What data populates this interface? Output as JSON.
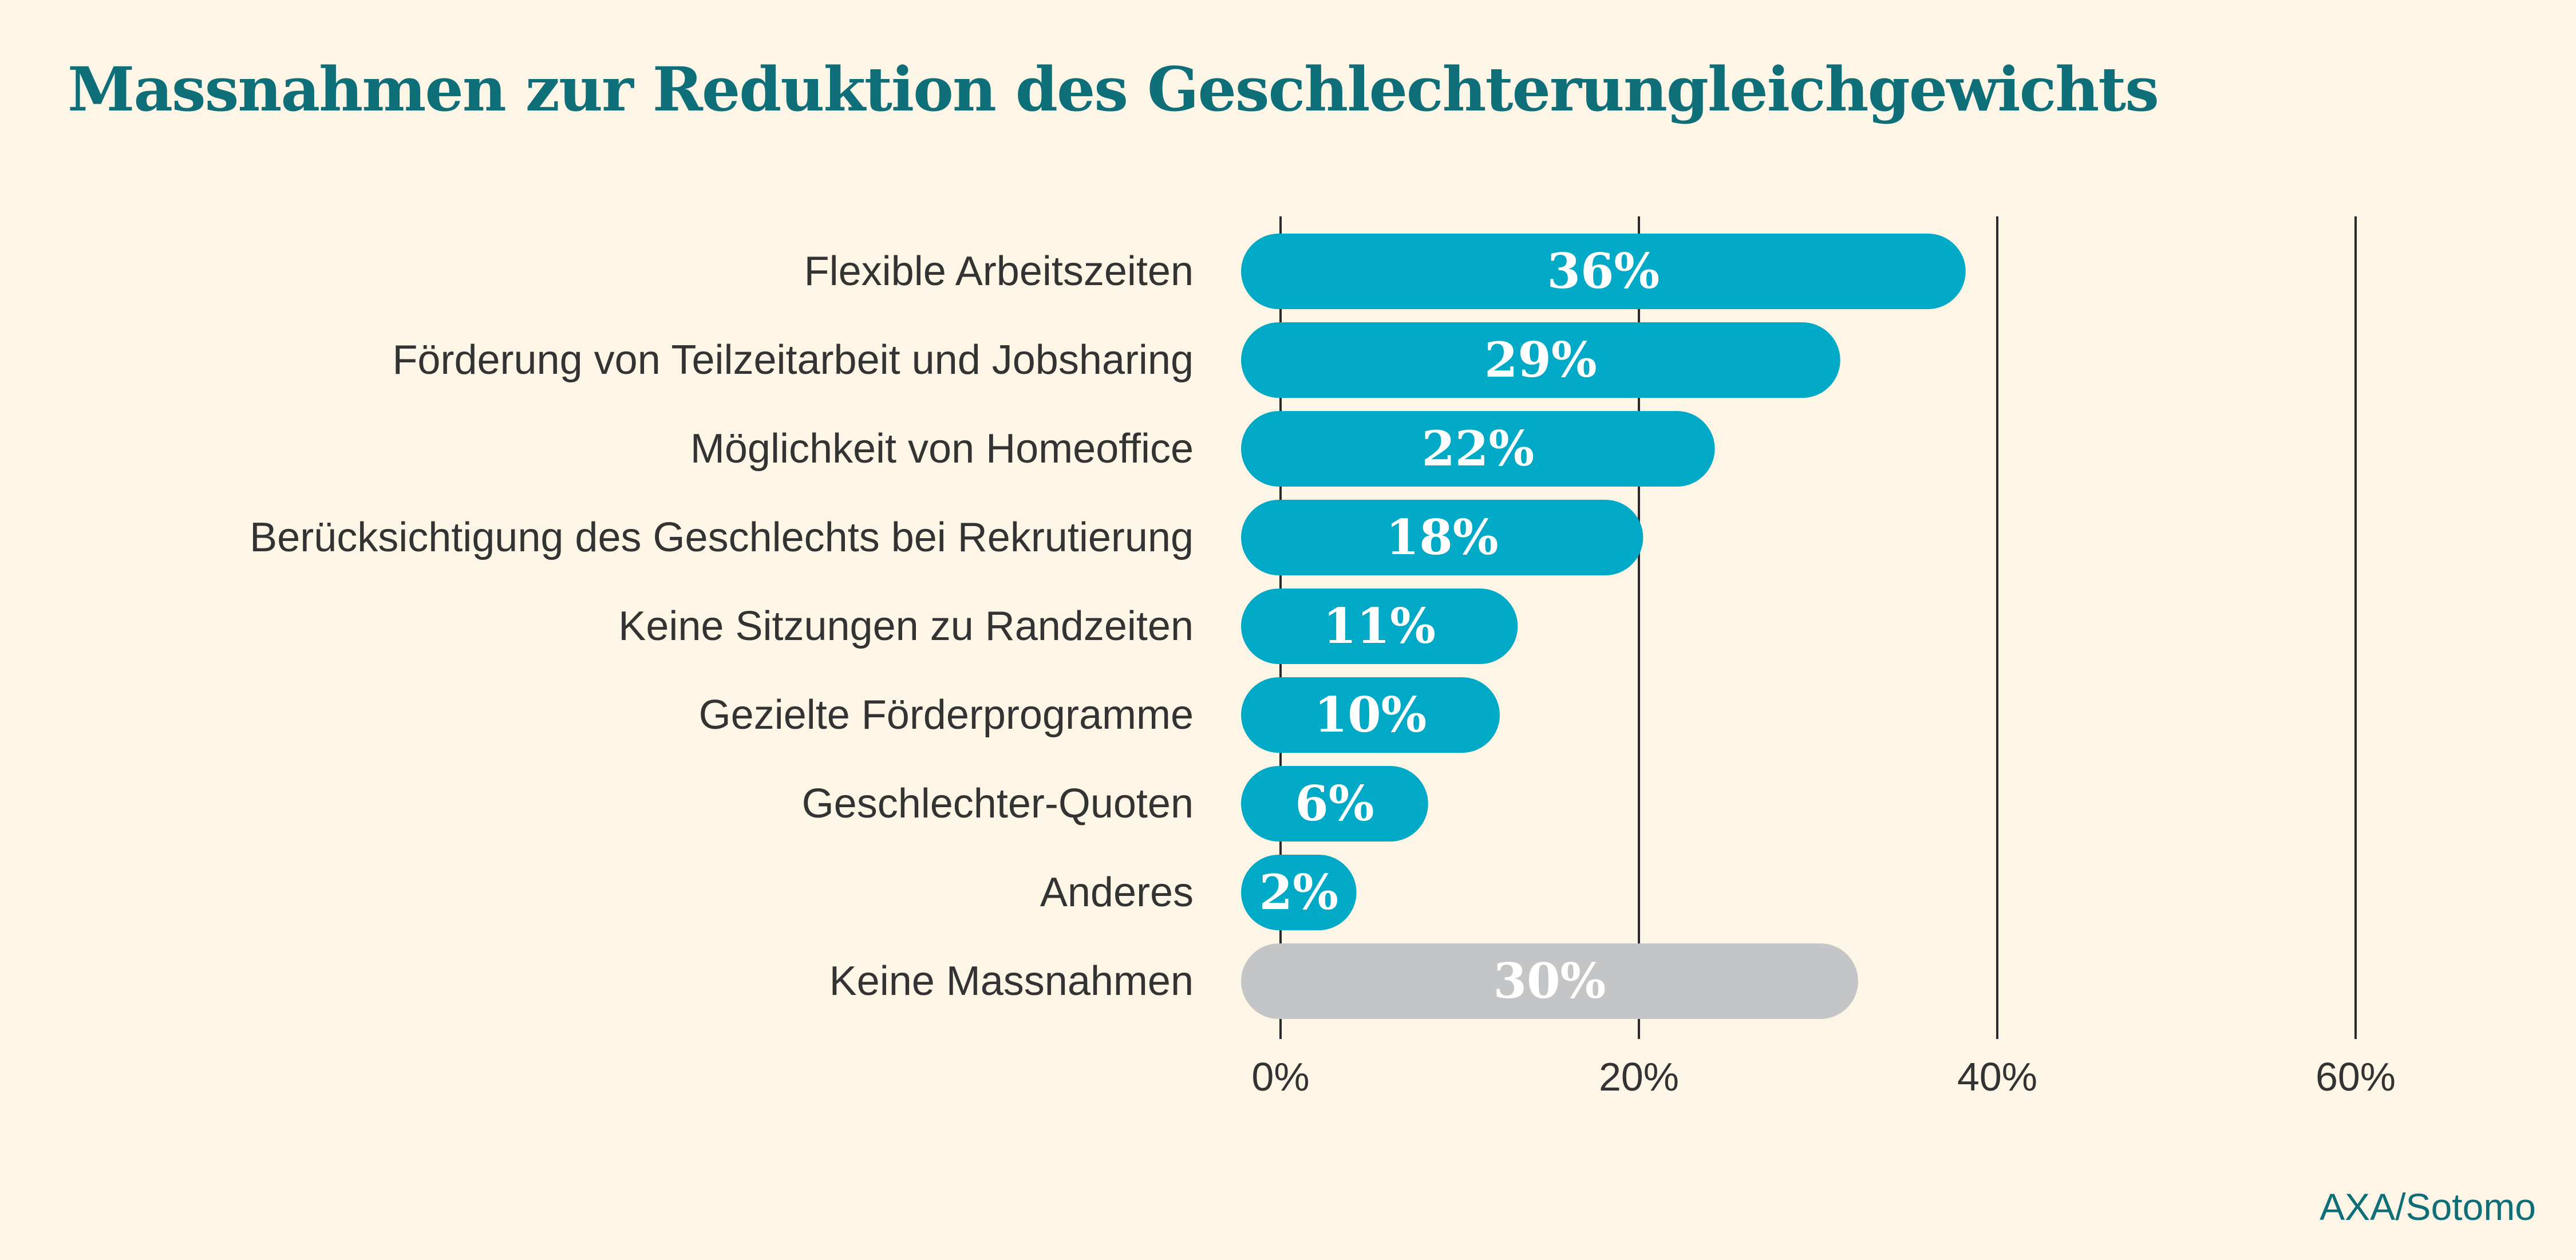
{
  "title": "Massnahmen zur Reduktion des Geschlechterungleichgewichts",
  "source": "AXA/Sotomo",
  "colors": {
    "background": "#fdf6e7",
    "title": "#0f6f78",
    "bar": "#00a9c6",
    "bar_none": "#c4c5c6",
    "bar_label": "#ffffff",
    "category_label": "#333333",
    "gridline": "#2b2b2b",
    "source": "#0f6f78"
  },
  "chart_data": {
    "type": "bar",
    "orientation": "horizontal",
    "title": "Massnahmen zur Reduktion des Geschlechterungleichgewichts",
    "xlabel": "",
    "ylabel": "",
    "xlim": [
      0,
      60
    ],
    "x_ticks": [
      0,
      20,
      40,
      60
    ],
    "tick_labels": [
      "0%",
      "20%",
      "40%",
      "60%"
    ],
    "grid": true,
    "legend": "none",
    "categories": [
      "Flexible Arbeitszeiten",
      "Förderung von Teilzeitarbeit und Jobsharing",
      "Möglichkeit von Homeoffice",
      "Berücksichtigung des Geschlechts bei Rekrutierung",
      "Keine Sitzungen zu Randzeiten",
      "Gezielte Förderprogramme",
      "Geschlechter-Quoten",
      "Anderes",
      "Keine Massnahmen"
    ],
    "values": [
      36,
      29,
      22,
      18,
      11,
      10,
      6,
      2,
      30
    ],
    "value_labels": [
      "36%",
      "29%",
      "22%",
      "18%",
      "11%",
      "10%",
      "6%",
      "2%",
      "30%"
    ],
    "highlight_gray": [
      "Keine Massnahmen"
    ]
  }
}
